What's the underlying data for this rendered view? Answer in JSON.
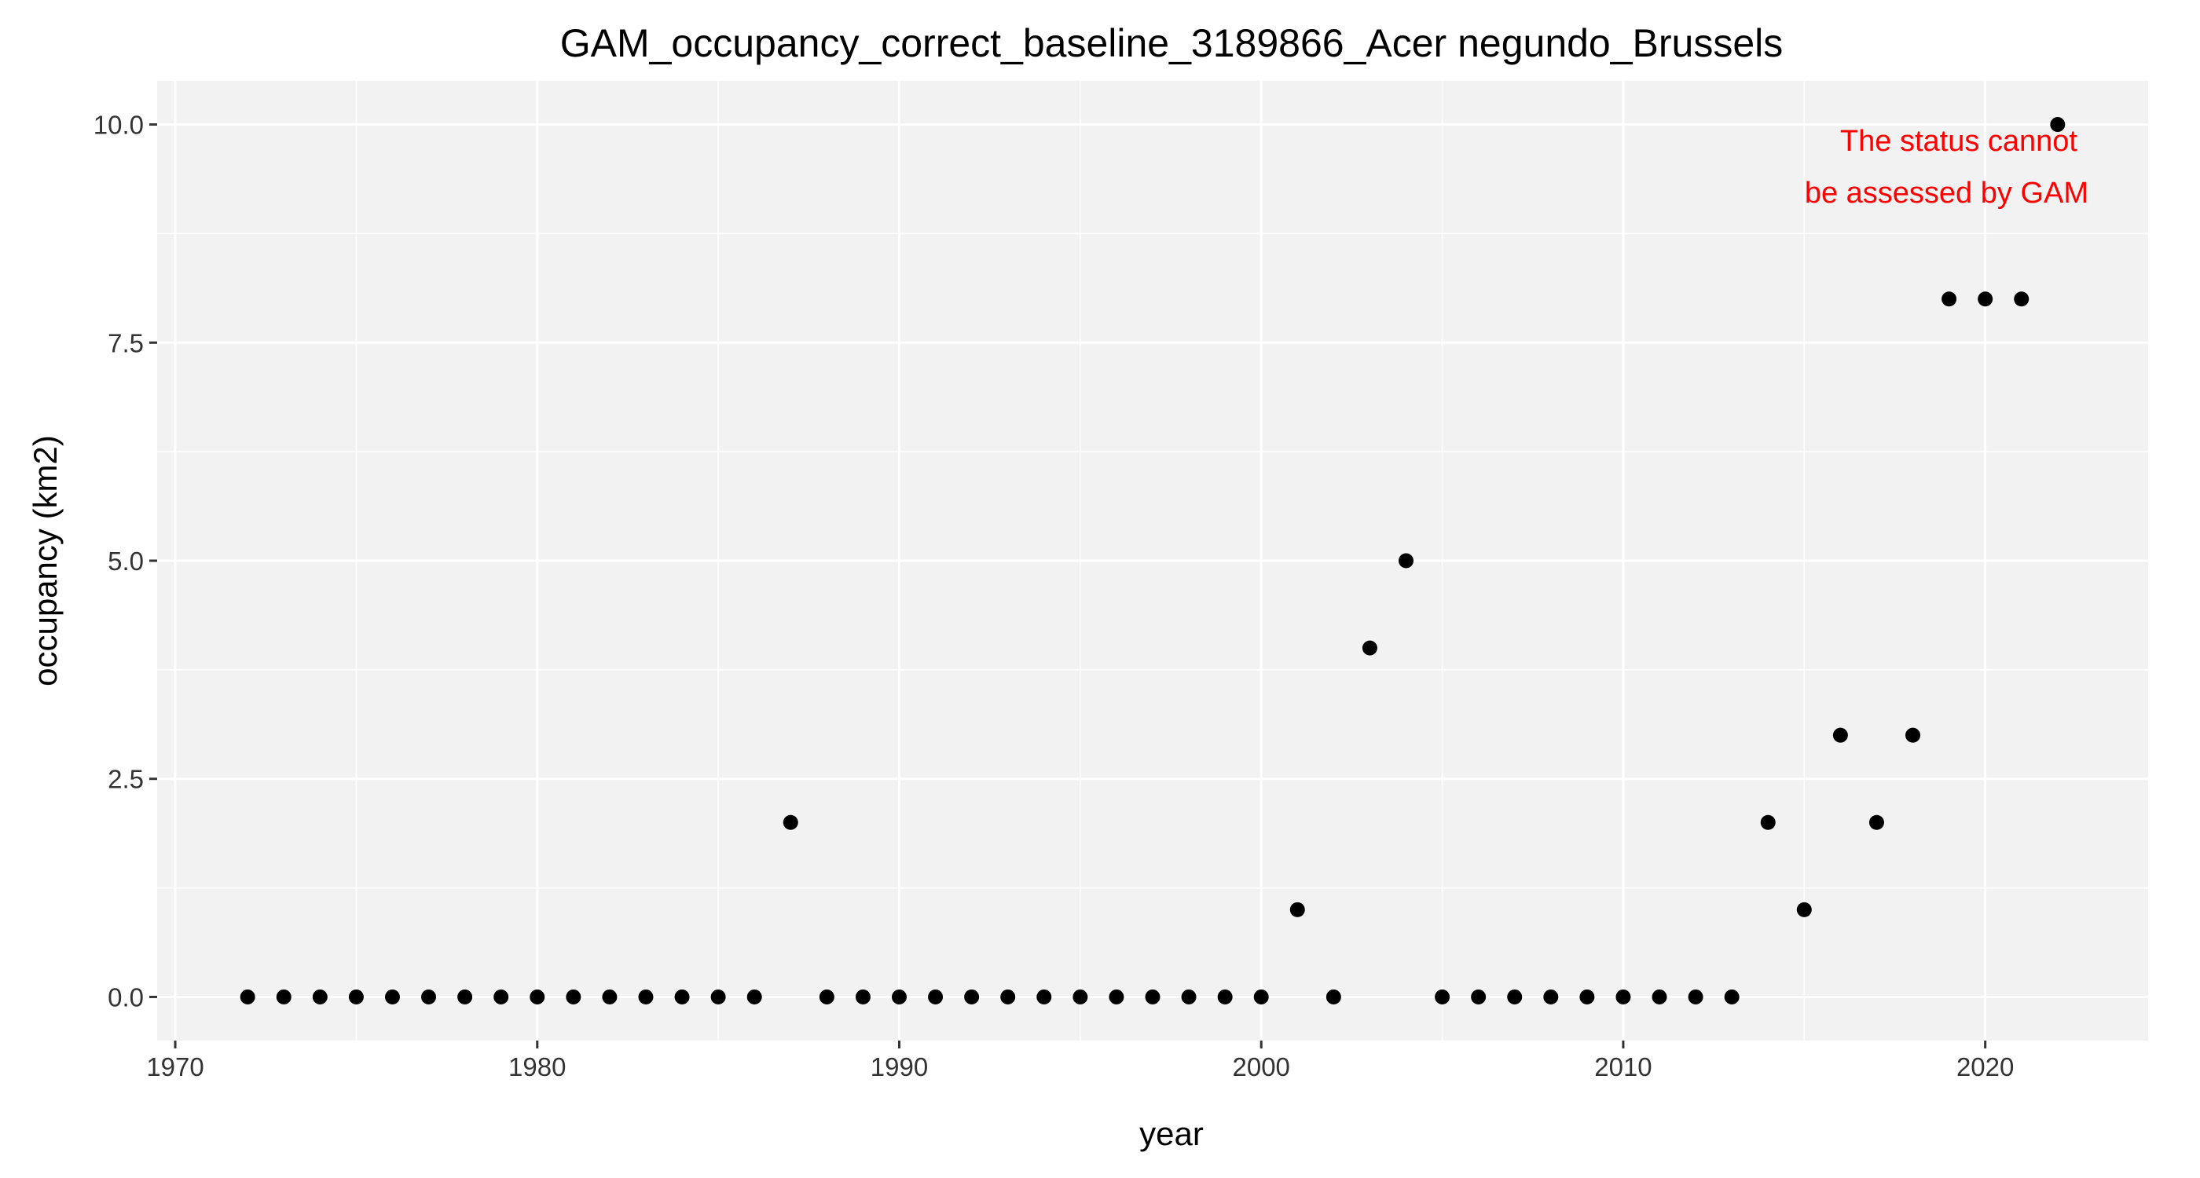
{
  "chart_data": {
    "type": "scatter",
    "title": "GAM_occupancy_correct_baseline_3189866_Acer negundo_Brussels",
    "xlabel": "year",
    "ylabel": "occupancy (km2)",
    "xlim": [
      1969.5,
      2024.5
    ],
    "ylim": [
      -0.5,
      10.5
    ],
    "x_ticks": [
      1970,
      1980,
      1990,
      2000,
      2010,
      2020
    ],
    "x_tick_labels": [
      "1970",
      "1980",
      "1990",
      "2000",
      "2010",
      "2020"
    ],
    "y_ticks": [
      0,
      2.5,
      5,
      7.5,
      10
    ],
    "y_tick_labels": [
      "0.0",
      "2.5",
      "5.0",
      "7.5",
      "10.0"
    ],
    "grid": true,
    "annotation": {
      "lines": [
        "The status cannot",
        "be assessed by GAM"
      ],
      "color": "#ff0000"
    },
    "x": [
      1972,
      1973,
      1974,
      1975,
      1976,
      1977,
      1978,
      1979,
      1980,
      1981,
      1982,
      1983,
      1984,
      1985,
      1986,
      1987,
      1988,
      1989,
      1990,
      1991,
      1992,
      1993,
      1994,
      1995,
      1996,
      1997,
      1998,
      1999,
      2000,
      2001,
      2002,
      2003,
      2004,
      2005,
      2006,
      2007,
      2008,
      2009,
      2010,
      2011,
      2012,
      2013,
      2014,
      2015,
      2016,
      2017,
      2018,
      2019,
      2020,
      2021,
      2022
    ],
    "y": [
      0,
      0,
      0,
      0,
      0,
      0,
      0,
      0,
      0,
      0,
      0,
      0,
      0,
      0,
      0,
      2,
      0,
      0,
      0,
      0,
      0,
      0,
      0,
      0,
      0,
      0,
      0,
      0,
      0,
      1,
      0,
      4,
      5,
      0,
      0,
      0,
      0,
      0,
      0,
      0,
      0,
      0,
      2,
      1,
      3,
      2,
      3,
      8,
      8,
      8,
      10
    ],
    "colors": {
      "panel": "#f2f2f2",
      "grid": "#ffffff",
      "point": "#000000",
      "tick": "#333333"
    }
  }
}
